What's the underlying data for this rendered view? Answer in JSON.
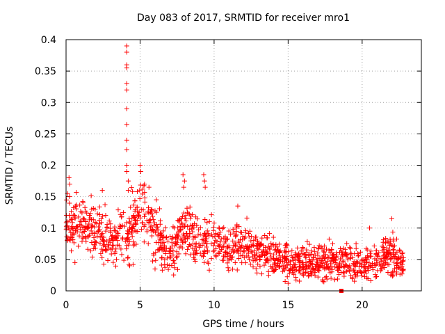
{
  "chart_data": {
    "type": "scatter",
    "title": "Day 083 of 2017, SRMTID for receiver mro1",
    "xlabel": "GPS time / hours",
    "ylabel": "SRMTID / TECUs",
    "xlim": [
      0,
      24
    ],
    "ylim": [
      0,
      0.4
    ],
    "xticks": [
      0,
      5,
      10,
      15,
      20
    ],
    "yticks": [
      0,
      0.05,
      0.1,
      0.15,
      0.2,
      0.25,
      0.3,
      0.35,
      0.4
    ],
    "ytick_labels": [
      "0",
      "0.05",
      "0.1",
      "0.15",
      "0.2",
      "0.25",
      "0.3",
      "0.35",
      "0.4"
    ],
    "grid": true,
    "marker": "+",
    "color": "#ff0000",
    "trend": [
      {
        "x": 0.0,
        "mean": 0.1,
        "spread": 0.03
      },
      {
        "x": 1.0,
        "mean": 0.11,
        "spread": 0.03
      },
      {
        "x": 2.0,
        "mean": 0.1,
        "spread": 0.03
      },
      {
        "x": 3.0,
        "mean": 0.08,
        "spread": 0.025
      },
      {
        "x": 4.0,
        "mean": 0.09,
        "spread": 0.03
      },
      {
        "x": 5.0,
        "mean": 0.12,
        "spread": 0.035
      },
      {
        "x": 6.0,
        "mean": 0.09,
        "spread": 0.03
      },
      {
        "x": 7.0,
        "mean": 0.06,
        "spread": 0.025
      },
      {
        "x": 8.0,
        "mean": 0.1,
        "spread": 0.03
      },
      {
        "x": 9.0,
        "mean": 0.08,
        "spread": 0.03
      },
      {
        "x": 10.0,
        "mean": 0.075,
        "spread": 0.025
      },
      {
        "x": 11.0,
        "mean": 0.07,
        "spread": 0.025
      },
      {
        "x": 12.0,
        "mean": 0.07,
        "spread": 0.025
      },
      {
        "x": 13.0,
        "mean": 0.06,
        "spread": 0.02
      },
      {
        "x": 14.0,
        "mean": 0.055,
        "spread": 0.02
      },
      {
        "x": 15.0,
        "mean": 0.045,
        "spread": 0.018
      },
      {
        "x": 16.0,
        "mean": 0.045,
        "spread": 0.018
      },
      {
        "x": 17.0,
        "mean": 0.045,
        "spread": 0.018
      },
      {
        "x": 18.0,
        "mean": 0.05,
        "spread": 0.02
      },
      {
        "x": 19.0,
        "mean": 0.045,
        "spread": 0.02
      },
      {
        "x": 20.0,
        "mean": 0.04,
        "spread": 0.018
      },
      {
        "x": 21.0,
        "mean": 0.05,
        "spread": 0.02
      },
      {
        "x": 22.0,
        "mean": 0.06,
        "spread": 0.025
      },
      {
        "x": 22.8,
        "mean": 0.04,
        "spread": 0.015
      }
    ],
    "x_range": [
      0,
      22.8
    ],
    "sample_count": 1400,
    "spikes": [
      {
        "x": 4.1,
        "y": 0.39
      },
      {
        "x": 4.1,
        "y": 0.38
      },
      {
        "x": 4.1,
        "y": 0.36
      },
      {
        "x": 4.1,
        "y": 0.355
      },
      {
        "x": 4.1,
        "y": 0.33
      },
      {
        "x": 4.1,
        "y": 0.32
      },
      {
        "x": 4.1,
        "y": 0.29
      },
      {
        "x": 4.1,
        "y": 0.265
      },
      {
        "x": 4.1,
        "y": 0.24
      },
      {
        "x": 4.1,
        "y": 0.225
      },
      {
        "x": 4.1,
        "y": 0.2
      },
      {
        "x": 4.1,
        "y": 0.19
      },
      {
        "x": 4.2,
        "y": 0.175
      },
      {
        "x": 4.2,
        "y": 0.16
      },
      {
        "x": 5.0,
        "y": 0.2
      },
      {
        "x": 5.05,
        "y": 0.19
      },
      {
        "x": 5.3,
        "y": 0.17
      },
      {
        "x": 0.2,
        "y": 0.18
      },
      {
        "x": 0.25,
        "y": 0.17
      },
      {
        "x": 0.1,
        "y": 0.155
      },
      {
        "x": 7.9,
        "y": 0.185
      },
      {
        "x": 8.0,
        "y": 0.175
      },
      {
        "x": 7.95,
        "y": 0.165
      },
      {
        "x": 9.3,
        "y": 0.185
      },
      {
        "x": 9.35,
        "y": 0.175
      },
      {
        "x": 9.4,
        "y": 0.165
      },
      {
        "x": 2.45,
        "y": 0.16
      },
      {
        "x": 5.6,
        "y": 0.165
      },
      {
        "x": 6.1,
        "y": 0.145
      },
      {
        "x": 11.6,
        "y": 0.135
      },
      {
        "x": 22.0,
        "y": 0.115
      },
      {
        "x": 20.5,
        "y": 0.1
      },
      {
        "x": 4.3,
        "y": 0.04
      },
      {
        "x": 4.25,
        "y": 0.042
      },
      {
        "x": 0.6,
        "y": 0.045
      },
      {
        "x": 15.0,
        "y": 0.012
      },
      {
        "x": 14.8,
        "y": 0.015
      },
      {
        "x": 17.9,
        "y": 0.02
      }
    ],
    "square_markers": [
      {
        "x": 18.6,
        "y": 0.0
      }
    ]
  }
}
